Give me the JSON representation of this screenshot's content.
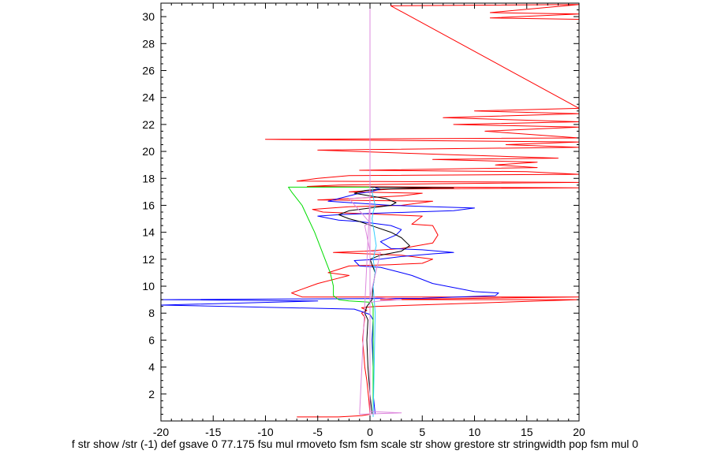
{
  "chart_data": {
    "type": "line",
    "title": "",
    "xlabel": "f str show /str (-1) def gsave 0 77.175 fsu mul rmoveto fsm fsm scale str show grestore str stringwidth pop fsm mul 0",
    "ylabel": "",
    "xlim": [
      -20,
      20
    ],
    "ylim": [
      0,
      31
    ],
    "x_ticks": [
      -20,
      -15,
      -10,
      -5,
      0,
      5,
      10,
      15,
      20
    ],
    "y_ticks": [
      2,
      4,
      6,
      8,
      10,
      12,
      14,
      16,
      18,
      20,
      22,
      24,
      26,
      28,
      30
    ],
    "grid": false,
    "legend": "none",
    "series": [
      {
        "color": "#ff0000",
        "points": [
          [
            -7,
            0.3
          ],
          [
            -3,
            0.3
          ],
          [
            -0.8,
            0.4
          ],
          [
            0,
            0.5
          ],
          [
            -0.1,
            1.5
          ],
          [
            -0.3,
            3
          ],
          [
            -0.5,
            4
          ],
          [
            -0.6,
            5
          ],
          [
            -0.7,
            6
          ],
          [
            -0.6,
            7
          ],
          [
            -0.5,
            7.7
          ],
          [
            -0.8,
            8
          ],
          [
            -0.3,
            8.2
          ],
          [
            -0.8,
            8.4
          ],
          [
            0.5,
            8.5
          ],
          [
            20,
            9.0
          ],
          [
            1,
            9.0
          ],
          [
            20,
            9.2
          ],
          [
            -6.5,
            9.2
          ],
          [
            -7.5,
            9.5
          ],
          [
            -5,
            10.2
          ],
          [
            -3,
            10.6
          ],
          [
            -2,
            10.8
          ],
          [
            -4,
            11.0
          ],
          [
            -2,
            11.5
          ],
          [
            2,
            11.6
          ],
          [
            5,
            11.7
          ],
          [
            6,
            12.0
          ],
          [
            3,
            12.3
          ],
          [
            -3.5,
            12.5
          ],
          [
            -0.5,
            12.6
          ],
          [
            3,
            12.8
          ],
          [
            6,
            13.2
          ],
          [
            6.5,
            13.8
          ],
          [
            6,
            14.5
          ],
          [
            4,
            14.6
          ],
          [
            5,
            15.2
          ],
          [
            -4.5,
            15.5
          ],
          [
            -5.5,
            15.7
          ],
          [
            -2,
            15.9
          ],
          [
            3,
            16.0
          ],
          [
            6,
            16.3
          ],
          [
            -5,
            16.4
          ],
          [
            -2,
            16.5
          ],
          [
            3,
            16.7
          ],
          [
            5,
            16.9
          ],
          [
            -2,
            17.0
          ],
          [
            2,
            17.2
          ],
          [
            20,
            17.3
          ],
          [
            -6,
            17.4
          ],
          [
            -3,
            17.5
          ],
          [
            6,
            17.6
          ],
          [
            20,
            17.7
          ],
          [
            -7,
            17.8
          ],
          [
            -5,
            18.0
          ],
          [
            -2,
            18.2
          ],
          [
            20,
            18.3
          ],
          [
            15,
            18.5
          ],
          [
            -1,
            18.6
          ],
          [
            16,
            18.8
          ],
          [
            12,
            19.0
          ],
          [
            16,
            19.2
          ],
          [
            6,
            19.4
          ],
          [
            18,
            19.5
          ],
          [
            6,
            19.8
          ],
          [
            -5,
            20.1
          ],
          [
            20,
            20.3
          ],
          [
            13,
            20.5
          ],
          [
            20,
            20.7
          ],
          [
            -10,
            20.9
          ],
          [
            20,
            21.0
          ],
          [
            11,
            21.5
          ],
          [
            20,
            21.8
          ],
          [
            8,
            22.0
          ],
          [
            20,
            22.2
          ],
          [
            7,
            22.5
          ],
          [
            20,
            22.8
          ],
          [
            10,
            23.0
          ],
          [
            20,
            23.2
          ],
          [
            2,
            30.8
          ],
          [
            20,
            30.9
          ],
          [
            11.5,
            30.3
          ],
          [
            20,
            30.2
          ],
          [
            11.5,
            29.9
          ],
          [
            20,
            29.8
          ]
        ]
      },
      {
        "color": "#0000ff",
        "points": [
          [
            0.5,
            0.5
          ],
          [
            0.3,
            2
          ],
          [
            0.3,
            4
          ],
          [
            0.2,
            6
          ],
          [
            0.3,
            7.5
          ],
          [
            0,
            7.9
          ],
          [
            -1.5,
            8.3
          ],
          [
            -20,
            8.6
          ],
          [
            -5,
            8.9
          ],
          [
            -20,
            9.0
          ],
          [
            5,
            9.1
          ],
          [
            12,
            9.3
          ],
          [
            12.3,
            9.5
          ],
          [
            10,
            9.6
          ],
          [
            8,
            9.9
          ],
          [
            6,
            10.2
          ],
          [
            5,
            10.5
          ],
          [
            4,
            10.8
          ],
          [
            3,
            11.0
          ],
          [
            1,
            11.4
          ],
          [
            -1,
            11.5
          ],
          [
            -1.5,
            11.9
          ],
          [
            1,
            12.0
          ],
          [
            3,
            12.2
          ],
          [
            6,
            12.4
          ],
          [
            8,
            12.5
          ],
          [
            5,
            12.7
          ],
          [
            2,
            12.8
          ],
          [
            1,
            13.3
          ],
          [
            2.5,
            13.8
          ],
          [
            3,
            14.2
          ],
          [
            2,
            14.5
          ],
          [
            -1,
            14.8
          ],
          [
            -3,
            14.9
          ],
          [
            -5,
            15.2
          ],
          [
            -3,
            15.3
          ],
          [
            0,
            15.4
          ],
          [
            4,
            15.5
          ],
          [
            8,
            15.6
          ],
          [
            10,
            15.8
          ],
          [
            6,
            15.9
          ],
          [
            2,
            16.0
          ],
          [
            -4,
            16.3
          ],
          [
            -3,
            16.5
          ],
          [
            -2,
            16.7
          ],
          [
            -1,
            16.9
          ],
          [
            0,
            17.0
          ],
          [
            1,
            17.2
          ],
          [
            0.5,
            17.3
          ]
        ]
      },
      {
        "color": "#000000",
        "points": [
          [
            0.2,
            0.5
          ],
          [
            0,
            2
          ],
          [
            -0.2,
            4
          ],
          [
            -0.3,
            6
          ],
          [
            -0.2,
            7.5
          ],
          [
            -0.5,
            8.0
          ],
          [
            -0.3,
            8.5
          ],
          [
            0.2,
            9.0
          ],
          [
            0.3,
            10
          ],
          [
            0.5,
            11
          ],
          [
            0.2,
            11.6
          ],
          [
            0,
            12.0
          ],
          [
            1,
            12.3
          ],
          [
            3,
            12.6
          ],
          [
            3.8,
            13.0
          ],
          [
            3,
            13.6
          ],
          [
            2,
            14.0
          ],
          [
            0.5,
            14.4
          ],
          [
            -1,
            14.8
          ],
          [
            -2,
            15.0
          ],
          [
            -3,
            15.3
          ],
          [
            -2,
            15.6
          ],
          [
            0,
            15.8
          ],
          [
            2,
            16.0
          ],
          [
            2.5,
            16.2
          ],
          [
            1.5,
            16.5
          ],
          [
            0,
            16.7
          ],
          [
            -1.5,
            16.9
          ],
          [
            -0.5,
            17.1
          ],
          [
            1,
            17.2
          ],
          [
            6,
            17.3
          ],
          [
            8,
            17.3
          ],
          [
            0,
            17.35
          ]
        ]
      },
      {
        "color": "#00dd00",
        "points": [
          [
            0.3,
            0.4
          ],
          [
            0.3,
            4
          ],
          [
            0.3,
            8.5
          ],
          [
            0.2,
            8.8
          ],
          [
            -2,
            8.9
          ],
          [
            -3,
            9.0
          ],
          [
            -3.5,
            9.3
          ],
          [
            -3.5,
            10
          ],
          [
            -3.8,
            11
          ],
          [
            -4.3,
            12
          ],
          [
            -4.8,
            13
          ],
          [
            -5.3,
            14
          ],
          [
            -5.9,
            15
          ],
          [
            -6.5,
            16
          ],
          [
            -7.5,
            17
          ],
          [
            -7.8,
            17.35
          ],
          [
            0,
            17.35
          ]
        ]
      },
      {
        "color": "#33ccff",
        "points": [
          [
            0.3,
            0.3
          ],
          [
            0.4,
            4
          ],
          [
            0.5,
            8
          ],
          [
            0.4,
            9
          ],
          [
            0.3,
            10
          ],
          [
            0.5,
            11
          ],
          [
            0.3,
            12
          ],
          [
            0.6,
            13
          ],
          [
            0.4,
            14
          ],
          [
            0.2,
            15
          ],
          [
            0.3,
            15.5
          ],
          [
            0.5,
            16
          ],
          [
            0.2,
            17
          ],
          [
            0.3,
            17.3
          ]
        ]
      },
      {
        "color": "#dd88dd",
        "points": [
          [
            0,
            0.2
          ],
          [
            0,
            31
          ],
          [
            0,
            8.8
          ],
          [
            1,
            8.9
          ],
          [
            3,
            9.0
          ],
          [
            0,
            9.2
          ],
          [
            1,
            12.5
          ],
          [
            0,
            12.6
          ],
          [
            -0.5,
            14.5
          ],
          [
            0,
            14.7
          ],
          [
            -2,
            16.5
          ],
          [
            0,
            16.6
          ],
          [
            -1,
            0.5
          ],
          [
            3,
            0.6
          ],
          [
            0,
            0.7
          ]
        ]
      }
    ]
  }
}
